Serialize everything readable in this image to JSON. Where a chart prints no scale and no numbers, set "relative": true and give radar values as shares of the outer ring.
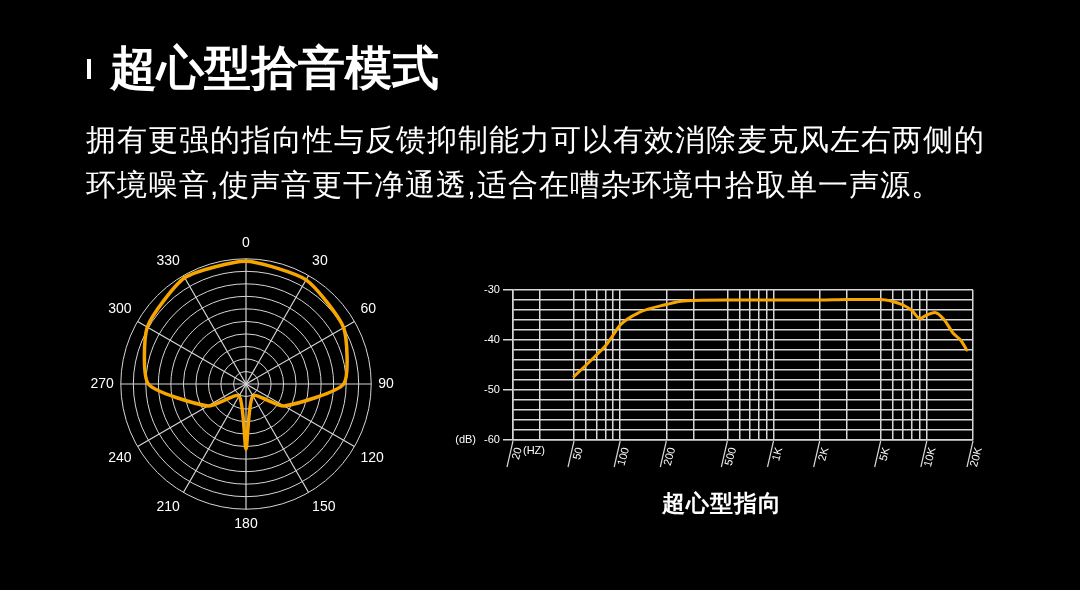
{
  "chart_data": [
    {
      "type": "radar",
      "title": "超心型拾音模式",
      "subtitle": "拥有更强的指向性与反馈抑制能力可以有效消除麦克风左右两侧的环境噪音,使声音更干净通透,适合在嘈杂环境中拾取单一声源。",
      "categories": [
        "0",
        "30",
        "60",
        "90",
        "120",
        "150",
        "180",
        "210",
        "240",
        "270",
        "300",
        "330"
      ],
      "relative": true,
      "series": [
        {
          "color": "#f7a600",
          "values": [
            0.98,
            0.96,
            0.9,
            0.78,
            0.35,
            0.11,
            0.52,
            0.11,
            0.35,
            0.78,
            0.91,
            0.98
          ]
        }
      ],
      "grid": true,
      "marker": "none"
    },
    {
      "type": "line",
      "title": "超心型指向",
      "xlabel": "(HZ)",
      "ylabel": "(dB)",
      "x": [
        50,
        60,
        70,
        80,
        90,
        100,
        133,
        200,
        260,
        500,
        1000,
        2000,
        3000,
        5000,
        6000,
        7000,
        8000,
        9000,
        10000,
        11300,
        13000,
        14900,
        16600,
        18200
      ],
      "values": [
        -47.3,
        -45,
        -43,
        -41.2,
        -39,
        -37,
        -34.5,
        -32.9,
        -32.2,
        -32,
        -32,
        -32,
        -31.9,
        -31.9,
        -32.3,
        -33,
        -34.1,
        -35.7,
        -35,
        -34.5,
        -36,
        -38.7,
        -40,
        -42
      ],
      "color": "#f7a600",
      "xlim": [
        20,
        20000
      ],
      "xticks": [
        20,
        {
          "value": 30,
          "label": null
        },
        50,
        {
          "value": 60,
          "label": null
        },
        {
          "value": 70,
          "label": null
        },
        {
          "value": 80,
          "label": null
        },
        {
          "value": 90,
          "label": null
        },
        100,
        200,
        {
          "value": 300,
          "label": null
        },
        500,
        {
          "value": 600,
          "label": null
        },
        {
          "value": 700,
          "label": null
        },
        {
          "value": 800,
          "label": null
        },
        {
          "value": 900,
          "label": null
        },
        {
          "value": 1000,
          "label": "1K"
        },
        {
          "value": 2000,
          "label": "2K"
        },
        {
          "value": 3000,
          "label": null
        },
        {
          "value": 5000,
          "label": "5K"
        },
        {
          "value": 6000,
          "label": null
        },
        {
          "value": 7000,
          "label": null
        },
        {
          "value": 8000,
          "label": null
        },
        {
          "value": 9000,
          "label": null
        },
        {
          "value": 10000,
          "label": "10K"
        },
        {
          "value": 20000,
          "label": "20K"
        }
      ],
      "ylim": [
        -60,
        -30
      ],
      "yticks": [
        -60,
        {
          "value": -58,
          "label": null
        },
        {
          "value": -56,
          "label": null
        },
        {
          "value": -54,
          "label": null
        },
        {
          "value": -52,
          "label": null
        },
        -50,
        {
          "value": -48,
          "label": null
        },
        {
          "value": -46,
          "label": null
        },
        {
          "value": -44,
          "label": null
        },
        {
          "value": -42,
          "label": null
        },
        -40,
        {
          "value": -38,
          "label": null
        },
        {
          "value": -36,
          "label": null
        },
        {
          "value": -34,
          "label": null
        },
        {
          "value": -32,
          "label": null
        },
        -30
      ],
      "log": "x",
      "grid": true,
      "marker": "none"
    }
  ]
}
